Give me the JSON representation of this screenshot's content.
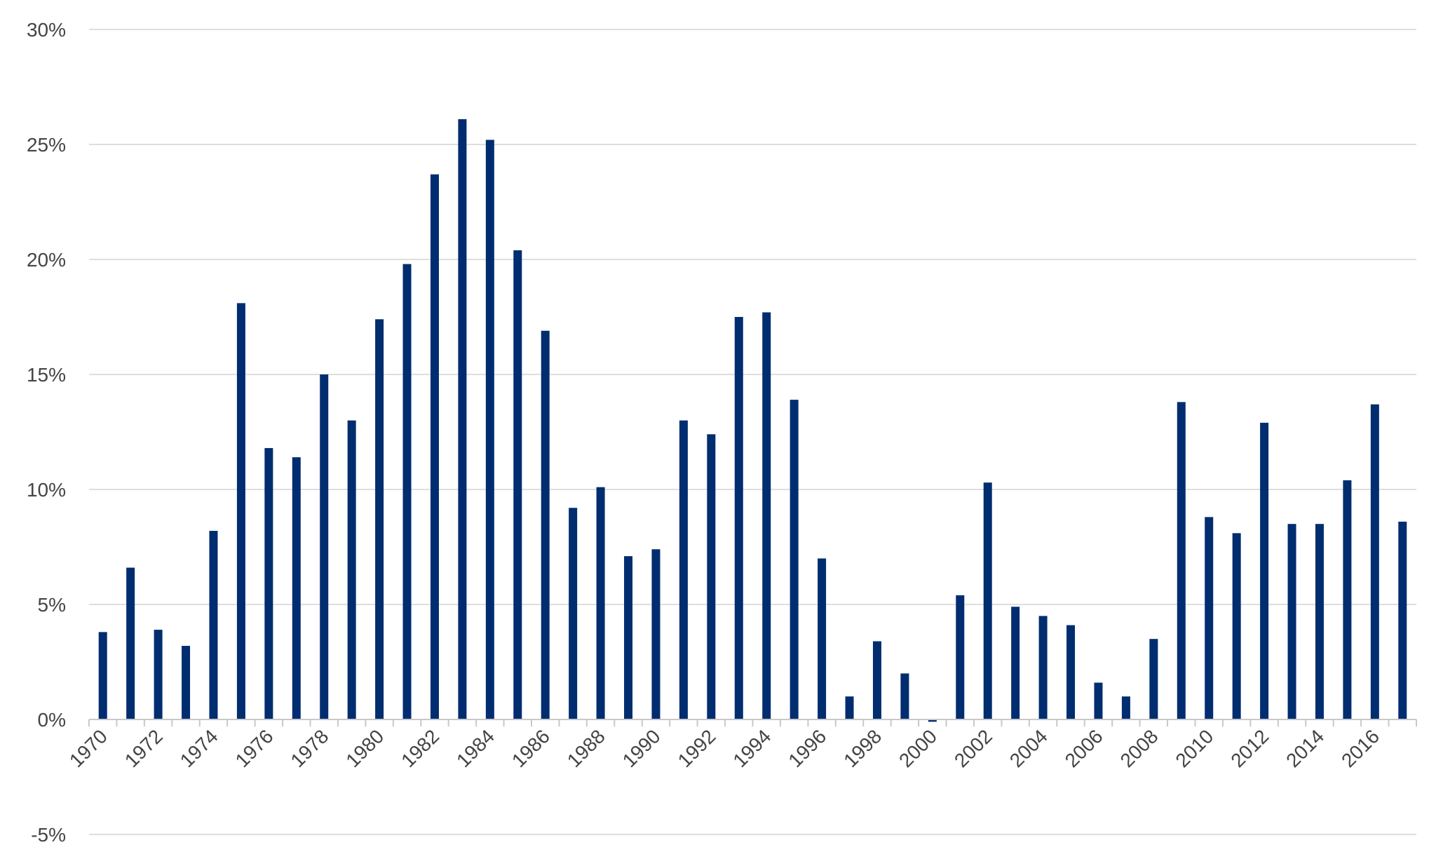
{
  "chart_data": {
    "type": "bar",
    "title": "",
    "xlabel": "",
    "ylabel": "",
    "ylim": [
      -5,
      30
    ],
    "yticks": [
      -5,
      0,
      5,
      10,
      15,
      20,
      25,
      30
    ],
    "ytick_labels": [
      "-5%",
      "0%",
      "5%",
      "10%",
      "15%",
      "20%",
      "25%",
      "30%"
    ],
    "grid": true,
    "legend": "none",
    "categories": [
      "1970",
      "1971",
      "1972",
      "1973",
      "1974",
      "1975",
      "1976",
      "1977",
      "1978",
      "1979",
      "1980",
      "1981",
      "1982",
      "1983",
      "1984",
      "1985",
      "1986",
      "1987",
      "1988",
      "1989",
      "1990",
      "1991",
      "1992",
      "1993",
      "1994",
      "1995",
      "1996",
      "1997",
      "1998",
      "1999",
      "2000",
      "2001",
      "2002",
      "2003",
      "2004",
      "2005",
      "2006",
      "2007",
      "2008",
      "2009",
      "2010",
      "2011",
      "2012",
      "2013",
      "2014",
      "2015",
      "2016",
      "2017"
    ],
    "xtick_labels": [
      "1970",
      "1972",
      "1974",
      "1976",
      "1978",
      "1980",
      "1982",
      "1984",
      "1986",
      "1988",
      "1990",
      "1992",
      "1994",
      "1996",
      "1998",
      "2000",
      "2002",
      "2004",
      "2006",
      "2008",
      "2010",
      "2012",
      "2014",
      "2016"
    ],
    "values": [
      3.8,
      6.6,
      3.9,
      3.2,
      8.2,
      18.1,
      11.8,
      11.4,
      15.0,
      13.0,
      17.4,
      19.8,
      23.7,
      26.1,
      25.2,
      20.4,
      16.9,
      9.2,
      10.1,
      7.1,
      7.4,
      13.0,
      12.4,
      17.5,
      17.7,
      13.9,
      7.0,
      1.0,
      3.4,
      2.0,
      -0.1,
      5.4,
      10.3,
      4.9,
      4.5,
      4.1,
      1.6,
      1.0,
      3.5,
      13.8,
      8.8,
      8.1,
      12.9,
      8.5,
      8.5,
      10.4,
      13.7,
      8.6
    ],
    "bar_color": "#002d6f",
    "grid_color": "#d4d4d4",
    "text_color": "#444444"
  }
}
